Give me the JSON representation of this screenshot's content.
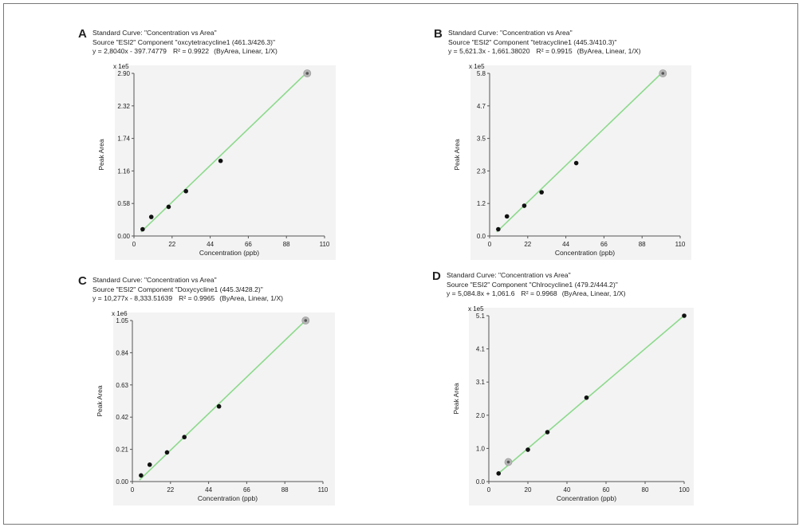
{
  "chart_data": [
    {
      "type": "scatter",
      "panel_label": "A",
      "title": "Standard Curve: \"Concentration vs Area\"",
      "source": "Source \"ESI2\" Component \"oxcytetracycline1 (461.3/426.3)\"",
      "equation": "y = 2,8040x - 397.74779",
      "r2_label": "R² = 0.9922",
      "fit_info": "(ByArea, Linear, 1/X)",
      "xlabel": "Concentration (ppb)",
      "ylabel": "Peak Area",
      "scale_label": "x 1e5",
      "xlim": [
        0,
        110
      ],
      "ylim": [
        0,
        2.9
      ],
      "xticks": [
        "0",
        "22",
        "44",
        "66",
        "88",
        "110"
      ],
      "yticks": [
        "0.00",
        "0.58",
        "1.16",
        "1.74",
        "2.32",
        "2.90"
      ],
      "grid": false,
      "line_color": "#8cd98c",
      "points": [
        {
          "x": 5,
          "y": 0.12
        },
        {
          "x": 10,
          "y": 0.34
        },
        {
          "x": 20,
          "y": 0.52
        },
        {
          "x": 30,
          "y": 0.8
        },
        {
          "x": 50,
          "y": 1.34
        },
        {
          "x": 100,
          "y": 2.9,
          "excluded": true
        }
      ],
      "fit_line": {
        "x": [
          5,
          100
        ],
        "y": [
          0.1,
          2.92
        ]
      }
    },
    {
      "type": "scatter",
      "panel_label": "B",
      "title": "Standard Curve: \"Concentration vs Area\"",
      "source": "Source \"ESI2\" Component \"tetracycline1 (445.3/410.3)\"",
      "equation": "y = 5,621.3x - 1,661.38020",
      "r2_label": "R² = 0.9915",
      "fit_info": "(ByArea, Linear, 1/X)",
      "xlabel": "Concentration (ppb)",
      "ylabel": "Peak Area",
      "scale_label": "x 1e5",
      "xlim": [
        0,
        110
      ],
      "ylim": [
        0,
        5.8
      ],
      "xticks": [
        "0",
        "22",
        "44",
        "66",
        "88",
        "110"
      ],
      "yticks": [
        "0.0",
        "1.2",
        "2.3",
        "3.5",
        "4.7",
        "5.8"
      ],
      "grid": false,
      "line_color": "#8cd98c",
      "points": [
        {
          "x": 5,
          "y": 0.24
        },
        {
          "x": 10,
          "y": 0.7
        },
        {
          "x": 20,
          "y": 1.08
        },
        {
          "x": 30,
          "y": 1.56
        },
        {
          "x": 50,
          "y": 2.6
        },
        {
          "x": 100,
          "y": 5.8,
          "excluded": true
        }
      ],
      "fit_line": {
        "x": [
          5,
          100
        ],
        "y": [
          0.2,
          5.85
        ]
      }
    },
    {
      "type": "scatter",
      "panel_label": "C",
      "title": "Standard Curve: \"Concentration vs Area\"",
      "source": "Source \"ESI2\" Component \"Doxycycline1 (445.3/428.2)\"",
      "equation": "y = 10,277x - 8,333.51639",
      "r2_label": "R² = 0.9965",
      "fit_info": "(ByArea, Linear, 1/X)",
      "xlabel": "Concentration (ppb)",
      "ylabel": "Peak Area",
      "scale_label": "x 1e6",
      "xlim": [
        0,
        110
      ],
      "ylim": [
        0,
        1.05
      ],
      "xticks": [
        "0",
        "22",
        "44",
        "66",
        "88",
        "110"
      ],
      "yticks": [
        "0.00",
        "0.21",
        "0.42",
        "0.63",
        "0.84",
        "1.05"
      ],
      "grid": false,
      "line_color": "#8cd98c",
      "points": [
        {
          "x": 5,
          "y": 0.04
        },
        {
          "x": 10,
          "y": 0.11
        },
        {
          "x": 20,
          "y": 0.19
        },
        {
          "x": 30,
          "y": 0.29
        },
        {
          "x": 50,
          "y": 0.49
        },
        {
          "x": 100,
          "y": 1.05,
          "excluded": true
        }
      ],
      "fit_line": {
        "x": [
          5,
          100
        ],
        "y": [
          0.02,
          1.05
        ]
      }
    },
    {
      "type": "scatter",
      "panel_label": "D",
      "title": "Standard Curve: \"Concentration vs Area\"",
      "source": "Source \"ESI2\" Component \"Chlrocycline1 (479.2/444.2)\"",
      "equation": "y = 5,084.8x + 1,061.6",
      "r2_label": "R² = 0.9968",
      "fit_info": "(ByArea, Linear, 1/X)",
      "xlabel": "Concentration (ppb)",
      "ylabel": "Peak Area",
      "scale_label": "x 1e5",
      "xlim": [
        0,
        100
      ],
      "ylim": [
        0,
        5.1
      ],
      "xticks": [
        "0",
        "20",
        "40",
        "60",
        "80",
        "100"
      ],
      "yticks": [
        "0.0",
        "1.0",
        "2.0",
        "3.1",
        "4.1",
        "5.1"
      ],
      "grid": false,
      "line_color": "#8cd98c",
      "points": [
        {
          "x": 5,
          "y": 0.25
        },
        {
          "x": 10,
          "y": 0.6,
          "excluded": true
        },
        {
          "x": 20,
          "y": 0.98
        },
        {
          "x": 30,
          "y": 1.52
        },
        {
          "x": 50,
          "y": 2.58
        },
        {
          "x": 100,
          "y": 5.1
        }
      ],
      "fit_line": {
        "x": [
          5,
          100
        ],
        "y": [
          0.26,
          5.1
        ]
      }
    }
  ]
}
